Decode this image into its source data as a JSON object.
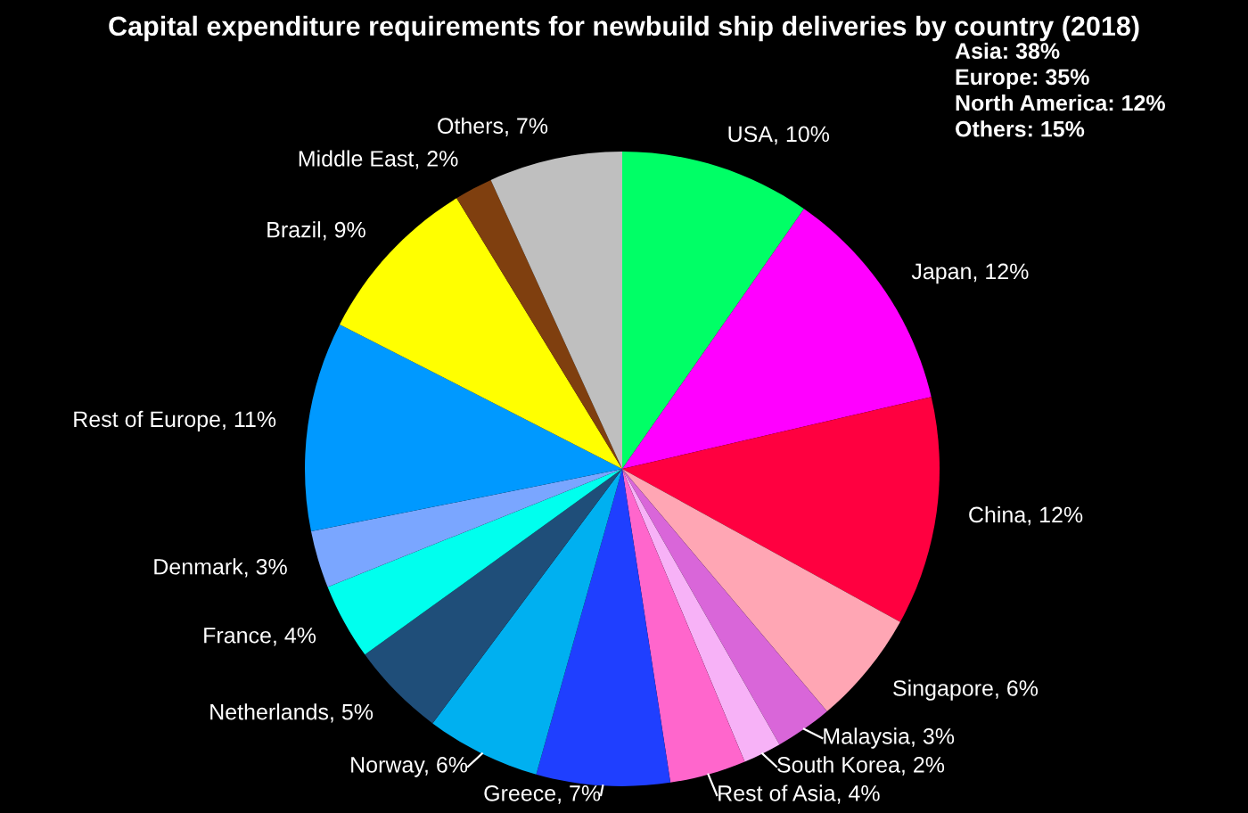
{
  "chart_data": {
    "type": "pie",
    "title": "Capital expenditure requirements for newbuild ship deliveries by country (2018)",
    "categories": [
      "USA",
      "Japan",
      "China",
      "Singapore",
      "Malaysia",
      "South Korea",
      "Rest of Asia",
      "Greece",
      "Norway",
      "Netherlands",
      "France",
      "Denmark",
      "Rest of Europe",
      "Brazil",
      "Middle East",
      "Others"
    ],
    "values": [
      10,
      12,
      12,
      6,
      3,
      2,
      4,
      7,
      6,
      5,
      4,
      3,
      11,
      9,
      2,
      7
    ],
    "value_labels": [
      "10%",
      "12%",
      "12%",
      "6%",
      "3%",
      "2%",
      "4%",
      "7%",
      "6%",
      "5%",
      "4%",
      "3%",
      "11%",
      "9%",
      "2%",
      "7%"
    ],
    "colors": [
      "#00ff66",
      "#ff00ff",
      "#ff0040",
      "#ffa6b4",
      "#d966d9",
      "#f7b2f7",
      "#ff66cc",
      "#1f3fff",
      "#00b0f0",
      "#1f4e79",
      "#00ffee",
      "#7aa6ff",
      "#0099ff",
      "#ffff00",
      "#7f3f0f",
      "#bfbfbf"
    ],
    "annotations": [
      "Asia: 38%",
      "Europe: 35%",
      "North America: 12%",
      "Others: 15%"
    ]
  }
}
